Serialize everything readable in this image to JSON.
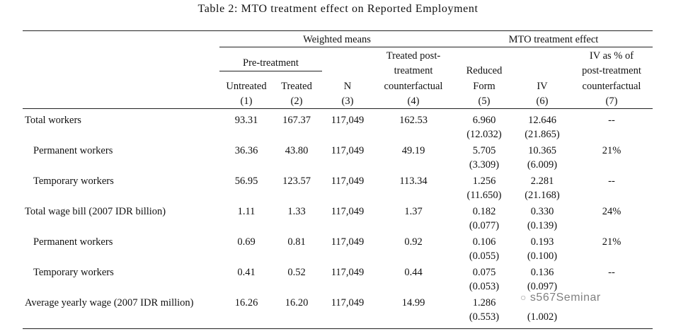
{
  "caption": "Table 2: MTO treatment effect on Reported Employment",
  "header": {
    "group_weighted_means": "Weighted means",
    "group_mto_effect": "MTO treatment effect",
    "pre_treatment": "Pre-treatment",
    "untreated": "Untreated",
    "treated": "Treated",
    "n": "N",
    "counterfactual_1": "Treated post-",
    "counterfactual_2": "treatment",
    "counterfactual_3": "counterfactual",
    "reduced_1": "Reduced",
    "reduced_2": "Form",
    "iv": "IV",
    "ivpct_1": "IV as % of",
    "ivpct_2": "post-treatment",
    "ivpct_3": "counterfactual",
    "colnums": [
      "(1)",
      "(2)",
      "(3)",
      "(4)",
      "(5)",
      "(6)",
      "(7)"
    ]
  },
  "rows": [
    {
      "label": "Total workers",
      "untreated": "93.31",
      "treated": "167.37",
      "n": "117,049",
      "cf": "162.53",
      "rf": "6.960",
      "rf_se": "(12.032)",
      "iv": "12.646",
      "iv_se": "(21.865)",
      "pct": "--"
    },
    {
      "label": "Permanent workers",
      "untreated": "36.36",
      "treated": "43.80",
      "n": "117,049",
      "cf": "49.19",
      "rf": "5.705",
      "rf_se": "(3.309)",
      "iv": "10.365",
      "iv_se": "(6.009)",
      "pct": "21%"
    },
    {
      "label": "Temporary workers",
      "untreated": "56.95",
      "treated": "123.57",
      "n": "117,049",
      "cf": "113.34",
      "rf": "1.256",
      "rf_se": "(11.650)",
      "iv": "2.281",
      "iv_se": "(21.168)",
      "pct": "--"
    },
    {
      "label": "Total wage bill (2007 IDR billion)",
      "untreated": "1.11",
      "treated": "1.33",
      "n": "117,049",
      "cf": "1.37",
      "rf": "0.182",
      "rf_se": "(0.077)",
      "iv": "0.330",
      "iv_se": "(0.139)",
      "pct": "24%"
    },
    {
      "label": "Permanent workers",
      "untreated": "0.69",
      "treated": "0.81",
      "n": "117,049",
      "cf": "0.92",
      "rf": "0.106",
      "rf_se": "(0.055)",
      "iv": "0.193",
      "iv_se": "(0.100)",
      "pct": "21%"
    },
    {
      "label": "Temporary workers",
      "untreated": "0.41",
      "treated": "0.52",
      "n": "117,049",
      "cf": "0.44",
      "rf": "0.075",
      "rf_se": "(0.053)",
      "iv": "0.136",
      "iv_se": "(0.097)",
      "pct": "--"
    },
    {
      "label": "Average yearly wage (2007 IDR million)",
      "untreated": "16.26",
      "treated": "16.20",
      "n": "117,049",
      "cf": "14.99",
      "rf": "1.286",
      "rf_se": "(0.553)",
      "iv": "",
      "iv_se": "(1.002)",
      "pct": ""
    }
  ],
  "watermark": "s567Seminar"
}
